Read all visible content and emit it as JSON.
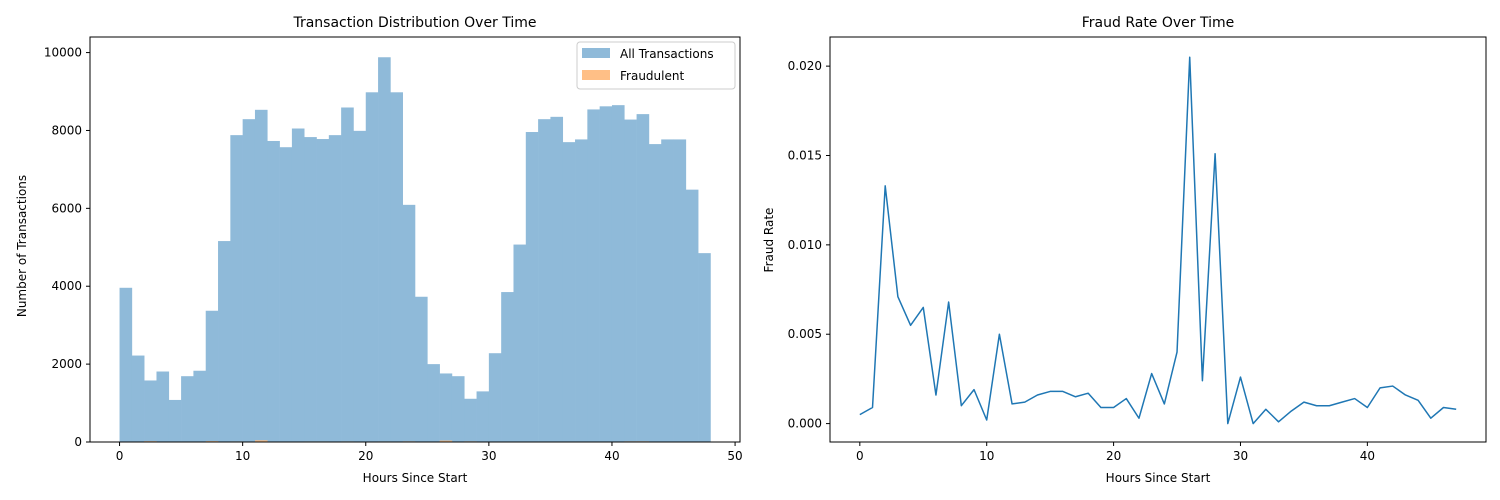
{
  "chart_data": [
    {
      "type": "bar",
      "title": "Transaction Distribution Over Time",
      "xlabel": "Hours Since Start",
      "ylabel": "Number of Transactions",
      "xlim": [
        -2.4,
        50.4
      ],
      "ylim": [
        0,
        10400
      ],
      "xticks": [
        0,
        10,
        20,
        30,
        40,
        50
      ],
      "yticks": [
        0,
        2000,
        4000,
        6000,
        8000,
        10000
      ],
      "bin_start": 0,
      "bin_width": 1,
      "grid": false,
      "legend_position": "top-right",
      "series": [
        {
          "name": "All Transactions",
          "color": "#8fbad9",
          "values": [
            3960,
            2220,
            1580,
            1810,
            1080,
            1690,
            1830,
            3370,
            5160,
            7880,
            8290,
            8530,
            7730,
            7570,
            8050,
            7830,
            7780,
            7880,
            8590,
            7990,
            8980,
            9880,
            8980,
            6090,
            3730,
            2000,
            1760,
            1690,
            1110,
            1300,
            2280,
            3850,
            5070,
            7960,
            8290,
            8350,
            7700,
            7770,
            8540,
            8620,
            8650,
            8280,
            8420,
            7650,
            7770,
            7770,
            6480,
            4850
          ]
        },
        {
          "name": "Fraudulent",
          "color": "#ffbf86",
          "values": [
            2,
            2,
            21,
            13,
            6,
            11,
            3,
            23,
            5,
            15,
            2,
            43,
            9,
            9,
            13,
            14,
            14,
            12,
            15,
            7,
            8,
            14,
            3,
            17,
            4,
            8,
            36,
            4,
            17,
            0,
            6,
            0,
            4,
            1,
            6,
            10,
            8,
            8,
            10,
            12,
            8,
            17,
            18,
            12,
            10,
            2,
            6,
            4
          ]
        }
      ]
    },
    {
      "type": "line",
      "title": "Fraud Rate Over Time",
      "xlabel": "Hours Since Start",
      "ylabel": "Fraud Rate",
      "xlim": [
        -2.35,
        49.35
      ],
      "ylim": [
        -0.00103,
        0.02163
      ],
      "xticks": [
        0,
        10,
        20,
        30,
        40
      ],
      "yticks": [
        0.0,
        0.005,
        0.01,
        0.015,
        0.02
      ],
      "ytick_labels": [
        "0.000",
        "0.005",
        "0.010",
        "0.015",
        "0.020"
      ],
      "grid": false,
      "series": [
        {
          "color": "#1f77b4",
          "x": [
            0,
            1,
            2,
            3,
            4,
            5,
            6,
            7,
            8,
            9,
            10,
            11,
            12,
            13,
            14,
            15,
            16,
            17,
            18,
            19,
            20,
            21,
            22,
            23,
            24,
            25,
            26,
            27,
            28,
            29,
            30,
            31,
            32,
            33,
            34,
            35,
            36,
            37,
            38,
            39,
            40,
            41,
            42,
            43,
            44,
            45,
            46,
            47
          ],
          "y": [
            0.0005,
            0.0009,
            0.0133,
            0.0071,
            0.0055,
            0.0065,
            0.0016,
            0.0068,
            0.001,
            0.0019,
            0.0002,
            0.005,
            0.0011,
            0.0012,
            0.0016,
            0.0018,
            0.0018,
            0.0015,
            0.0017,
            0.0009,
            0.0009,
            0.0014,
            0.0003,
            0.0028,
            0.0011,
            0.004,
            0.0205,
            0.0024,
            0.0151,
            0.0,
            0.0026,
            0.0,
            0.0008,
            0.0001,
            0.0007,
            0.0012,
            0.001,
            0.001,
            0.0012,
            0.0014,
            0.0009,
            0.002,
            0.0021,
            0.0016,
            0.0013,
            0.0003,
            0.0009,
            0.0008
          ]
        }
      ]
    }
  ]
}
